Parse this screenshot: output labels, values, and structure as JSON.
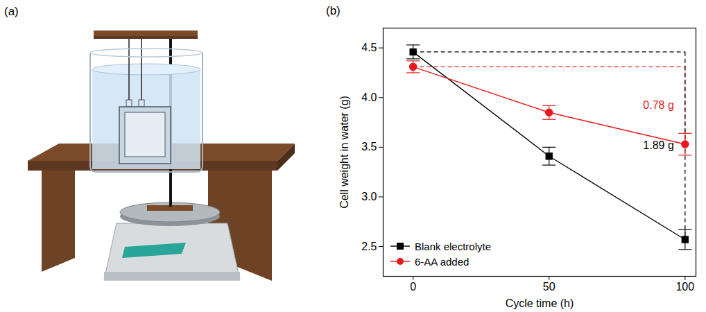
{
  "panel_a": {
    "label": "(a)"
  },
  "chart_data": {
    "type": "line",
    "panel_label": "(b)",
    "x_label": "Cycle time (h)",
    "y_label": "Cell weight in water (g)",
    "x": [
      0,
      50,
      100
    ],
    "series": [
      {
        "name": "Blank electrolyte",
        "color": "#000000",
        "marker": "square",
        "line_style": "solid",
        "values": [
          4.46,
          3.41,
          2.57
        ],
        "errors": [
          0.07,
          0.09,
          0.1
        ]
      },
      {
        "name": "6-AA added",
        "color": "#e8191c",
        "marker": "circle",
        "line_style": "solid",
        "values": [
          4.31,
          3.85,
          3.53
        ],
        "errors": [
          0.06,
          0.07,
          0.11
        ]
      }
    ],
    "annotations": [
      {
        "text": "0.78 g",
        "color": "#e8191c",
        "series": "6-AA added"
      },
      {
        "text": "1.89 g",
        "color": "#000000",
        "series": "Blank electrolyte"
      }
    ],
    "xlim": [
      -11,
      104
    ],
    "xticks": [
      0,
      50,
      100
    ],
    "ylim": [
      2.2,
      4.7
    ],
    "yticks": [
      2.5,
      {
        "value": 3,
        "label": "3.0"
      },
      3.5,
      {
        "value": 4,
        "label": "4.0"
      },
      4.5
    ],
    "grid": false,
    "legend": "lower left"
  }
}
